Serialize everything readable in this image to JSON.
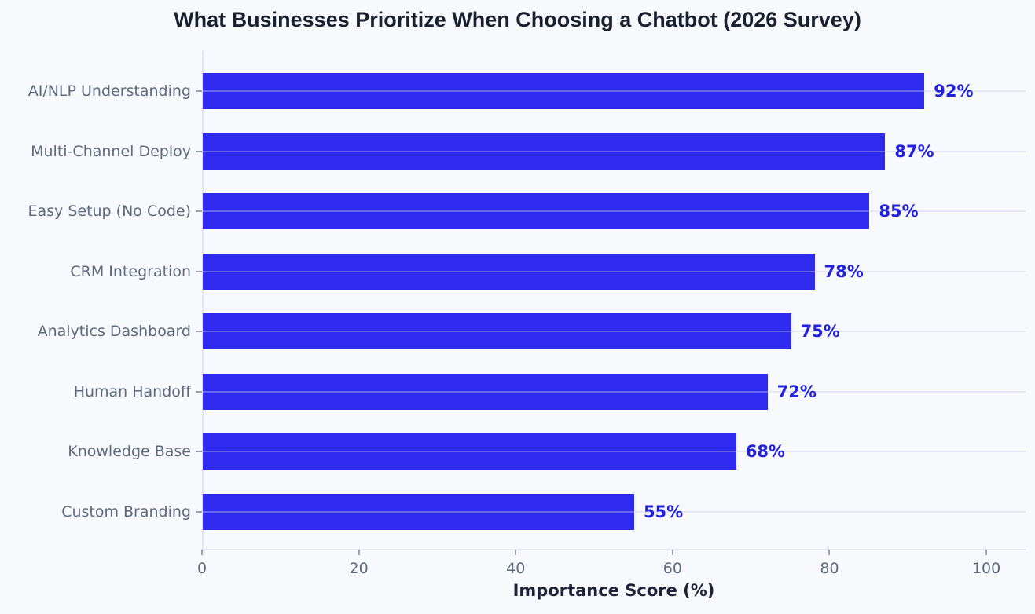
{
  "chart_data": {
    "type": "bar",
    "orientation": "horizontal",
    "title": "What Businesses Prioritize When Choosing a Chatbot (2026 Survey)",
    "xlabel": "Importance Score (%)",
    "ylabel": "",
    "categories": [
      "AI/NLP Understanding",
      "Multi-Channel Deploy",
      "Easy Setup (No Code)",
      "CRM Integration",
      "Analytics Dashboard",
      "Human Handoff",
      "Knowledge Base",
      "Custom Branding"
    ],
    "values": [
      92,
      87,
      85,
      78,
      75,
      72,
      68,
      55
    ],
    "value_labels": [
      "92%",
      "87%",
      "85%",
      "78%",
      "75%",
      "72%",
      "68%",
      "55%"
    ],
    "x_ticks": [
      0,
      20,
      40,
      60,
      80,
      100
    ],
    "x_tick_labels": [
      "0",
      "20",
      "40",
      "60",
      "80",
      "100"
    ],
    "xlim": [
      0,
      105
    ],
    "grid": "horizontal-gridlines-at-each-category",
    "legend": "none",
    "colors": {
      "bar": "#2e2bee",
      "value_label": "#2222dd",
      "axis_text": "#5d6a7e",
      "title_text": "#1b2030",
      "background": "#f8f9fc",
      "axis_line": "#e3e5ef"
    }
  }
}
